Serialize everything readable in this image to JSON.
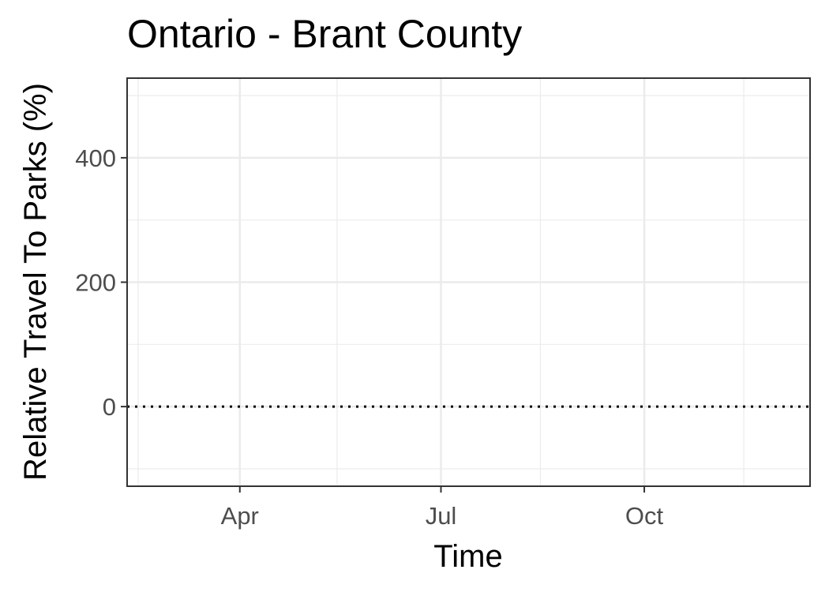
{
  "chart_data": {
    "type": "line",
    "title": "Ontario - Brant County",
    "xlabel": "Time",
    "ylabel": "Relative Travel To Parks (%)",
    "x_axis": {
      "type": "date",
      "range": [
        "2020-02-10",
        "2020-12-15"
      ],
      "ticks": [
        {
          "date": "2020-04-01",
          "label": "Apr"
        },
        {
          "date": "2020-07-01",
          "label": "Jul"
        },
        {
          "date": "2020-10-01",
          "label": "Oct"
        }
      ],
      "minor_ticks": [
        "2020-02-15",
        "2020-05-15",
        "2020-08-15",
        "2020-11-15"
      ]
    },
    "y_axis": {
      "range": [
        -128,
        528
      ],
      "ticks": [
        0,
        200,
        400
      ],
      "tick_labels": [
        "0",
        "200",
        "400"
      ],
      "minor_ticks": [
        -100,
        100,
        300,
        500
      ]
    },
    "reference_line": {
      "y": 0,
      "style": "dotted",
      "color": "#000000"
    },
    "series": [],
    "grid": true,
    "legend": "none"
  }
}
